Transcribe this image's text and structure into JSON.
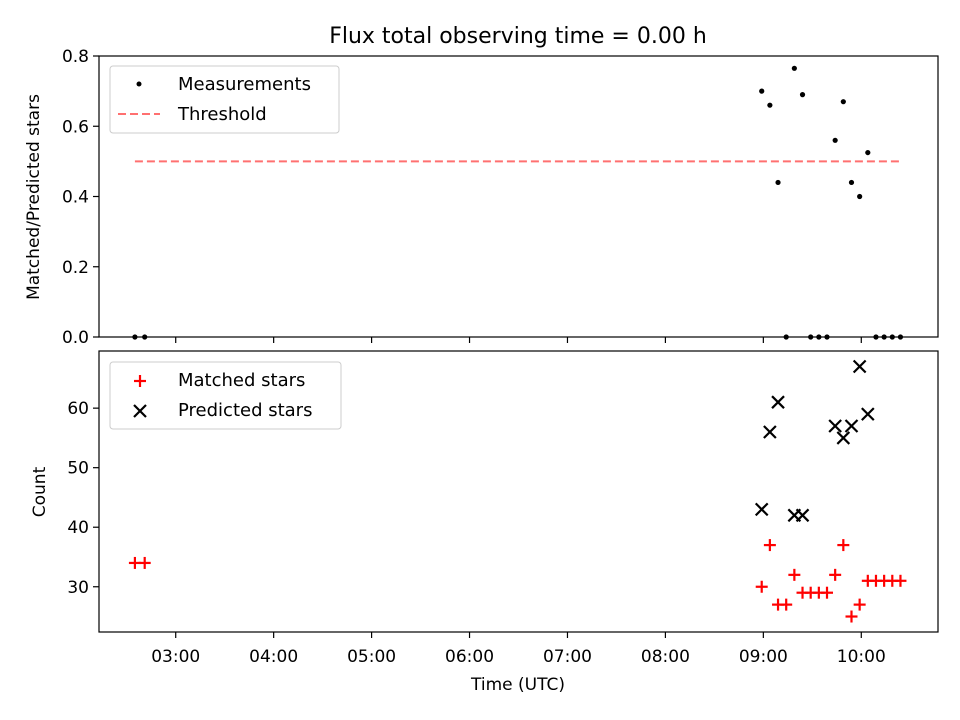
{
  "title": "Flux total observing time = 0.00 h",
  "xlabel": "Time (UTC)",
  "x_tick_labels": [
    "03:00",
    "04:00",
    "05:00",
    "06:00",
    "07:00",
    "08:00",
    "09:00",
    "10:00"
  ],
  "chart_data": [
    {
      "type": "scatter",
      "title": "Flux total observing time = 0.00 h",
      "ylabel": "Matched/Predicted stars",
      "xlim": [
        "02:13",
        "10:47"
      ],
      "ylim": [
        0,
        0.8
      ],
      "y_ticks": [
        "0.0",
        "0.2",
        "0.4",
        "0.6",
        "0.8"
      ],
      "grid": false,
      "legend_position": "upper left",
      "series": [
        {
          "name": "Measurements",
          "marker": "dot",
          "color": "#000000",
          "x": [
            "02:35",
            "02:41",
            "08:59",
            "09:04",
            "09:09",
            "09:14",
            "09:19",
            "09:24",
            "09:29",
            "09:34",
            "09:39",
            "09:44",
            "09:49",
            "09:54",
            "09:59",
            "10:04",
            "10:09",
            "10:14",
            "10:19",
            "10:24"
          ],
          "y": [
            0,
            0,
            0.7,
            0.66,
            0.44,
            0,
            0.765,
            0.69,
            0,
            0,
            0,
            0.56,
            0.67,
            0.44,
            0.4,
            0.525,
            0,
            0,
            0,
            0
          ]
        },
        {
          "name": "Threshold",
          "line": "dashed",
          "color": "#ff7070",
          "x": [
            "02:35",
            "10:24"
          ],
          "y": [
            0.5,
            0.5
          ]
        }
      ]
    },
    {
      "type": "scatter",
      "ylabel": "Count",
      "xlabel": "Time (UTC)",
      "xlim": [
        "02:13",
        "10:47"
      ],
      "ylim": [
        22.4,
        69.6
      ],
      "y_ticks": [
        "30",
        "40",
        "50",
        "60"
      ],
      "grid": false,
      "legend_position": "upper left",
      "series": [
        {
          "name": "Matched stars",
          "marker": "plus",
          "color": "#ff0000",
          "x": [
            "02:35",
            "02:41",
            "08:59",
            "09:04",
            "09:09",
            "09:14",
            "09:19",
            "09:24",
            "09:29",
            "09:34",
            "09:39",
            "09:44",
            "09:49",
            "09:54",
            "09:59",
            "10:04",
            "10:09",
            "10:14",
            "10:19",
            "10:24"
          ],
          "y": [
            34,
            34,
            30,
            37,
            27,
            27,
            32,
            29,
            29,
            29,
            29,
            32,
            37,
            25,
            27,
            31,
            31,
            31,
            31,
            31
          ]
        },
        {
          "name": "Predicted stars",
          "marker": "x",
          "color": "#000000",
          "x": [
            "08:59",
            "09:04",
            "09:09",
            "09:19",
            "09:24",
            "09:44",
            "09:49",
            "09:54",
            "09:59",
            "10:04"
          ],
          "y": [
            43,
            56,
            61,
            42,
            42,
            57,
            55,
            57,
            67,
            59
          ]
        }
      ]
    }
  ]
}
